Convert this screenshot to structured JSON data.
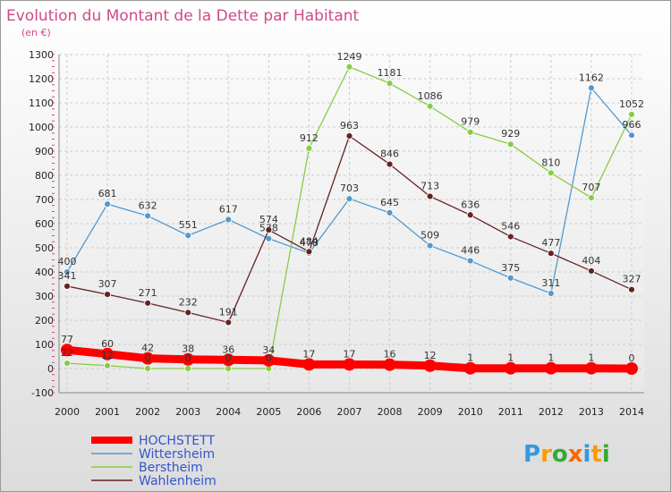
{
  "chart_data": {
    "type": "line",
    "title": "Evolution du Montant de la Dette par Habitant",
    "subtitle": "(en €)",
    "categories": [
      "2000",
      "2001",
      "2002",
      "2003",
      "2004",
      "2005",
      "2006",
      "2007",
      "2008",
      "2009",
      "2010",
      "2011",
      "2012",
      "2013",
      "2014"
    ],
    "ylim": [
      -100,
      1300
    ],
    "yticks": [
      -100,
      0,
      100,
      200,
      300,
      400,
      500,
      600,
      700,
      800,
      900,
      1000,
      1100,
      1200,
      1300
    ],
    "grid": true,
    "legend_position": "bottom-left",
    "series": [
      {
        "name": "HOCHSTETT",
        "color": "#ff0000",
        "values": [
          77,
          60,
          42,
          38,
          36,
          34,
          17,
          17,
          16,
          12,
          1,
          1,
          1,
          1,
          0
        ],
        "labels": [
          "77",
          "60",
          "42",
          "38",
          "36",
          "34",
          "17",
          "17",
          "16",
          "12",
          "1",
          "1",
          "1",
          "1",
          "0"
        ]
      },
      {
        "name": "Wittersheim",
        "color": "#5599cc",
        "values": [
          400,
          681,
          632,
          551,
          617,
          538,
          478,
          703,
          645,
          509,
          446,
          375,
          311,
          1162,
          966
        ],
        "labels": [
          "400",
          "681",
          "632",
          "551",
          "617",
          "538",
          "478",
          "703",
          "645",
          "509",
          "446",
          "375",
          "311",
          "1162",
          "966"
        ]
      },
      {
        "name": "Berstheim",
        "color": "#88cc44",
        "values": [
          22,
          12,
          0,
          0,
          0,
          0,
          912,
          1249,
          1181,
          1086,
          979,
          929,
          810,
          707,
          1052
        ],
        "labels": [
          "22",
          "12",
          "0",
          "0",
          "0",
          "0",
          "912",
          "1249",
          "1181",
          "1086",
          "979",
          "929",
          "810",
          "707",
          "1052"
        ]
      },
      {
        "name": "Wahlenheim",
        "color": "#662222",
        "values": [
          341,
          307,
          271,
          232,
          191,
          574,
          484,
          963,
          846,
          713,
          636,
          546,
          477,
          404,
          327
        ],
        "labels": [
          "341",
          "307",
          "271",
          "232",
          "191",
          "574",
          "484",
          "963",
          "846",
          "713",
          "636",
          "546",
          "477",
          "404",
          "327"
        ]
      }
    ]
  },
  "legend": [
    "HOCHSTETT",
    "Wittersheim",
    "Berstheim",
    "Wahlenheim"
  ],
  "logo": {
    "letters": [
      "P",
      "r",
      "o",
      "x",
      "i",
      "t",
      "i"
    ],
    "colors": [
      "#3399dd",
      "#ff9900",
      "#33aa33",
      "#ff6600",
      "#3399dd",
      "#ff9900",
      "#33aa33"
    ]
  }
}
